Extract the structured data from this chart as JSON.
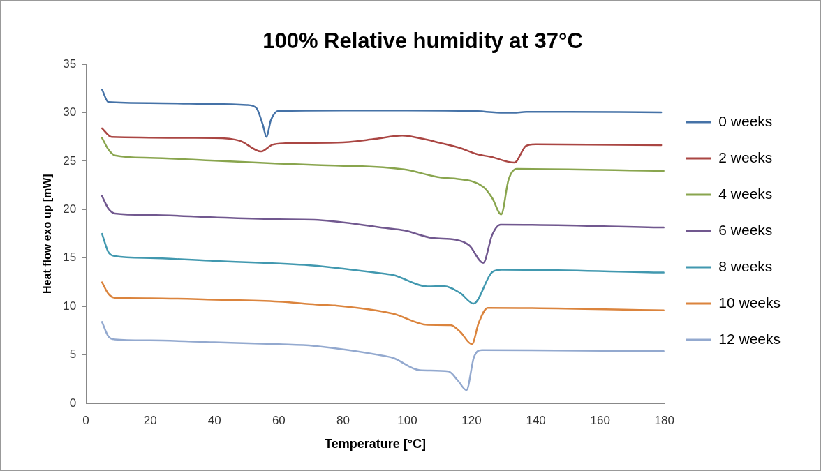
{
  "chart_data": {
    "type": "line",
    "title": "100% Relative humidity at 37°C",
    "xlabel": "Temperature [°C]",
    "ylabel": "Heat flow exo up [mW]",
    "xlim": [
      0,
      180
    ],
    "xticks": [
      0,
      20,
      40,
      60,
      80,
      100,
      120,
      140,
      160,
      180
    ],
    "ylim": [
      0,
      35
    ],
    "yticks": [
      0,
      5,
      10,
      15,
      20,
      25,
      30,
      35
    ],
    "grid": false,
    "legend": "right",
    "marker": "none",
    "line_style": "solid",
    "series": [
      {
        "name": "0 weeks",
        "color": "#4572a7",
        "x": [
          5,
          7,
          20,
          40,
          50,
          53,
          55,
          56.2,
          57.5,
          60,
          80,
          100,
          120,
          130,
          133,
          137,
          150,
          179
        ],
        "values": [
          32.4,
          31.1,
          31.0,
          30.9,
          30.8,
          30.5,
          28.8,
          27.5,
          29.2,
          30.2,
          30.25,
          30.25,
          30.2,
          30.0,
          30.0,
          30.1,
          30.1,
          30.05
        ]
      },
      {
        "name": "2 weeks",
        "color": "#aa4643",
        "x": [
          5,
          8,
          40,
          48,
          54.5,
          58,
          62,
          80,
          90,
          98.4,
          105,
          110,
          116,
          122,
          126,
          133.3,
          137,
          140,
          179
        ],
        "values": [
          28.4,
          27.5,
          27.4,
          27.1,
          26.0,
          26.7,
          26.85,
          26.95,
          27.3,
          27.65,
          27.3,
          26.9,
          26.4,
          25.7,
          25.45,
          24.85,
          26.6,
          26.75,
          26.65
        ]
      },
      {
        "name": "4 weeks",
        "color": "#89a54e",
        "x": [
          5,
          7,
          9,
          20,
          40,
          60,
          71.7,
          99,
          110.6,
          115,
          123.6,
          126.4,
          129.2,
          131.5,
          134,
          179.8
        ],
        "values": [
          27.4,
          26.2,
          25.6,
          25.35,
          25.05,
          24.75,
          24.6,
          24.15,
          23.3,
          23.2,
          22.35,
          21.2,
          19.5,
          23.1,
          24.2,
          24.0
        ]
      },
      {
        "name": "6 weeks",
        "color": "#71588f",
        "x": [
          5,
          7,
          9,
          20,
          40,
          60,
          71,
          93.3,
          99.1,
          107.8,
          115,
          119.3,
          123.6,
          126.4,
          129,
          179.8
        ],
        "values": [
          21.4,
          20.1,
          19.6,
          19.45,
          19.2,
          19.0,
          18.95,
          18.1,
          17.85,
          17.07,
          16.9,
          16.3,
          14.5,
          17.4,
          18.45,
          18.15
        ]
      },
      {
        "name": "8 weeks",
        "color": "#4198af",
        "x": [
          5,
          7,
          9,
          20,
          40,
          68,
          77.5,
          93.3,
          95.5,
          106.3,
          111.3,
          116.4,
          120.6,
          126.4,
          129.4,
          179.8
        ],
        "values": [
          17.5,
          15.6,
          15.2,
          15.0,
          14.7,
          14.3,
          14.0,
          13.36,
          13.26,
          12.07,
          12.1,
          11.4,
          10.3,
          13.55,
          13.8,
          13.5
        ]
      },
      {
        "name": "10 weeks",
        "color": "#db843d",
        "x": [
          5,
          7,
          9,
          20,
          40,
          60,
          71.7,
          77.5,
          95.5,
          106.3,
          113.5,
          116.4,
          120.1,
          122.2,
          125,
          179.8
        ],
        "values": [
          12.5,
          11.3,
          10.9,
          10.85,
          10.7,
          10.5,
          10.2,
          10.1,
          9.26,
          8.1,
          8.07,
          7.4,
          6.1,
          8.3,
          9.86,
          9.6
        ]
      },
      {
        "name": "12 weeks",
        "color": "#93a9cf",
        "x": [
          5,
          7,
          9,
          20,
          40,
          60,
          71,
          93.3,
          95.5,
          103.8,
          112.8,
          115.7,
          118.4,
          120.7,
          123.2,
          179.8
        ],
        "values": [
          8.4,
          6.9,
          6.6,
          6.5,
          6.3,
          6.1,
          5.93,
          4.86,
          4.7,
          3.43,
          3.3,
          2.36,
          1.36,
          4.74,
          5.5,
          5.38
        ]
      }
    ]
  }
}
